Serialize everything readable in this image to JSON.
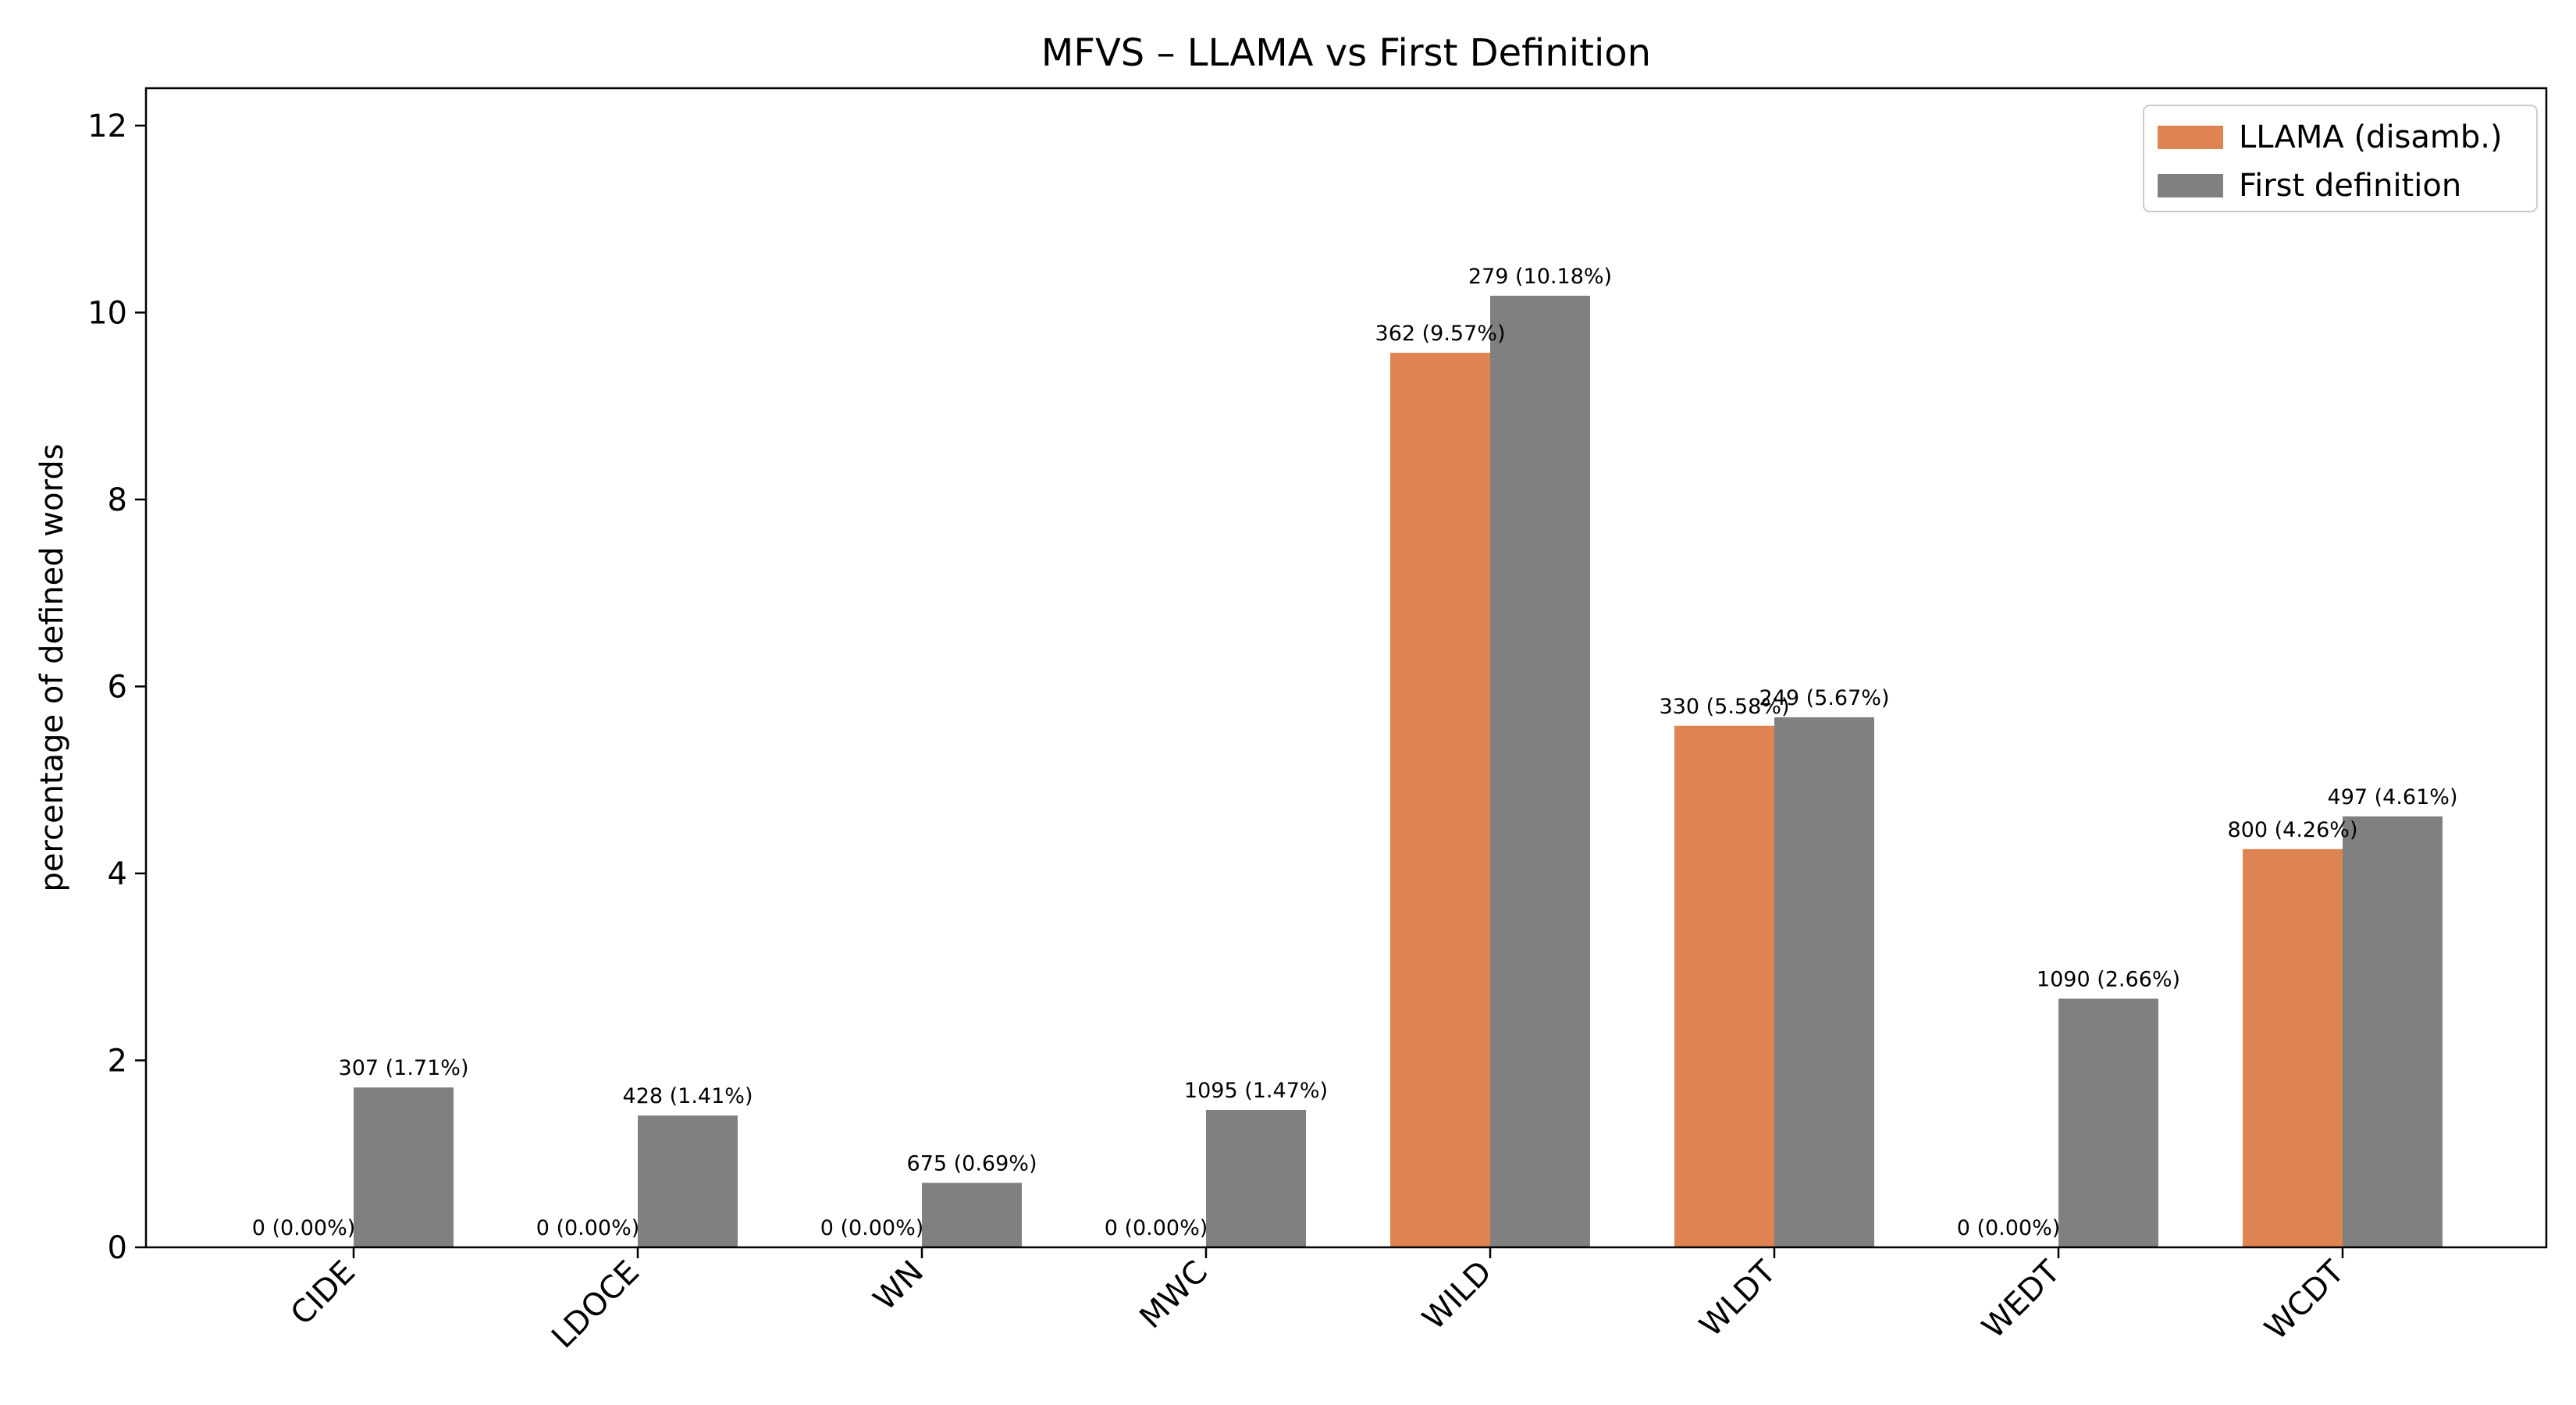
{
  "chart_data": {
    "type": "bar",
    "title": "MFVS – LLAMA vs First Definition",
    "xlabel": "",
    "ylabel": "percentage of defined words",
    "ylim": [
      0,
      12.4
    ],
    "yticks": [
      0,
      2,
      4,
      6,
      8,
      10,
      12
    ],
    "grid": false,
    "legend_position": "top-right",
    "categories": [
      "CIDE",
      "LDOCE",
      "WN",
      "MWC",
      "WILD",
      "WLDT",
      "WEDT",
      "WCDT"
    ],
    "series": [
      {
        "name": "LLAMA (disamb.)",
        "color": "#dd8452",
        "values": [
          0,
          0,
          0,
          0,
          9.57,
          5.58,
          0,
          4.26
        ],
        "labels": [
          "0 (0.00%)",
          "0 (0.00%)",
          "0 (0.00%)",
          "0 (0.00%)",
          "362 (9.57%)",
          "330 (5.58%)",
          "0 (0.00%)",
          "800 (4.26%)"
        ]
      },
      {
        "name": "First definition",
        "color": "#808080",
        "values": [
          1.71,
          1.41,
          0.69,
          1.47,
          10.18,
          5.67,
          2.66,
          4.61
        ],
        "labels": [
          "307 (1.71%)",
          "428 (1.41%)",
          "675 (0.69%)",
          "1095 (1.47%)",
          "279 (10.18%)",
          "249 (5.67%)",
          "1090 (2.66%)",
          "497 (4.61%)"
        ]
      }
    ]
  }
}
